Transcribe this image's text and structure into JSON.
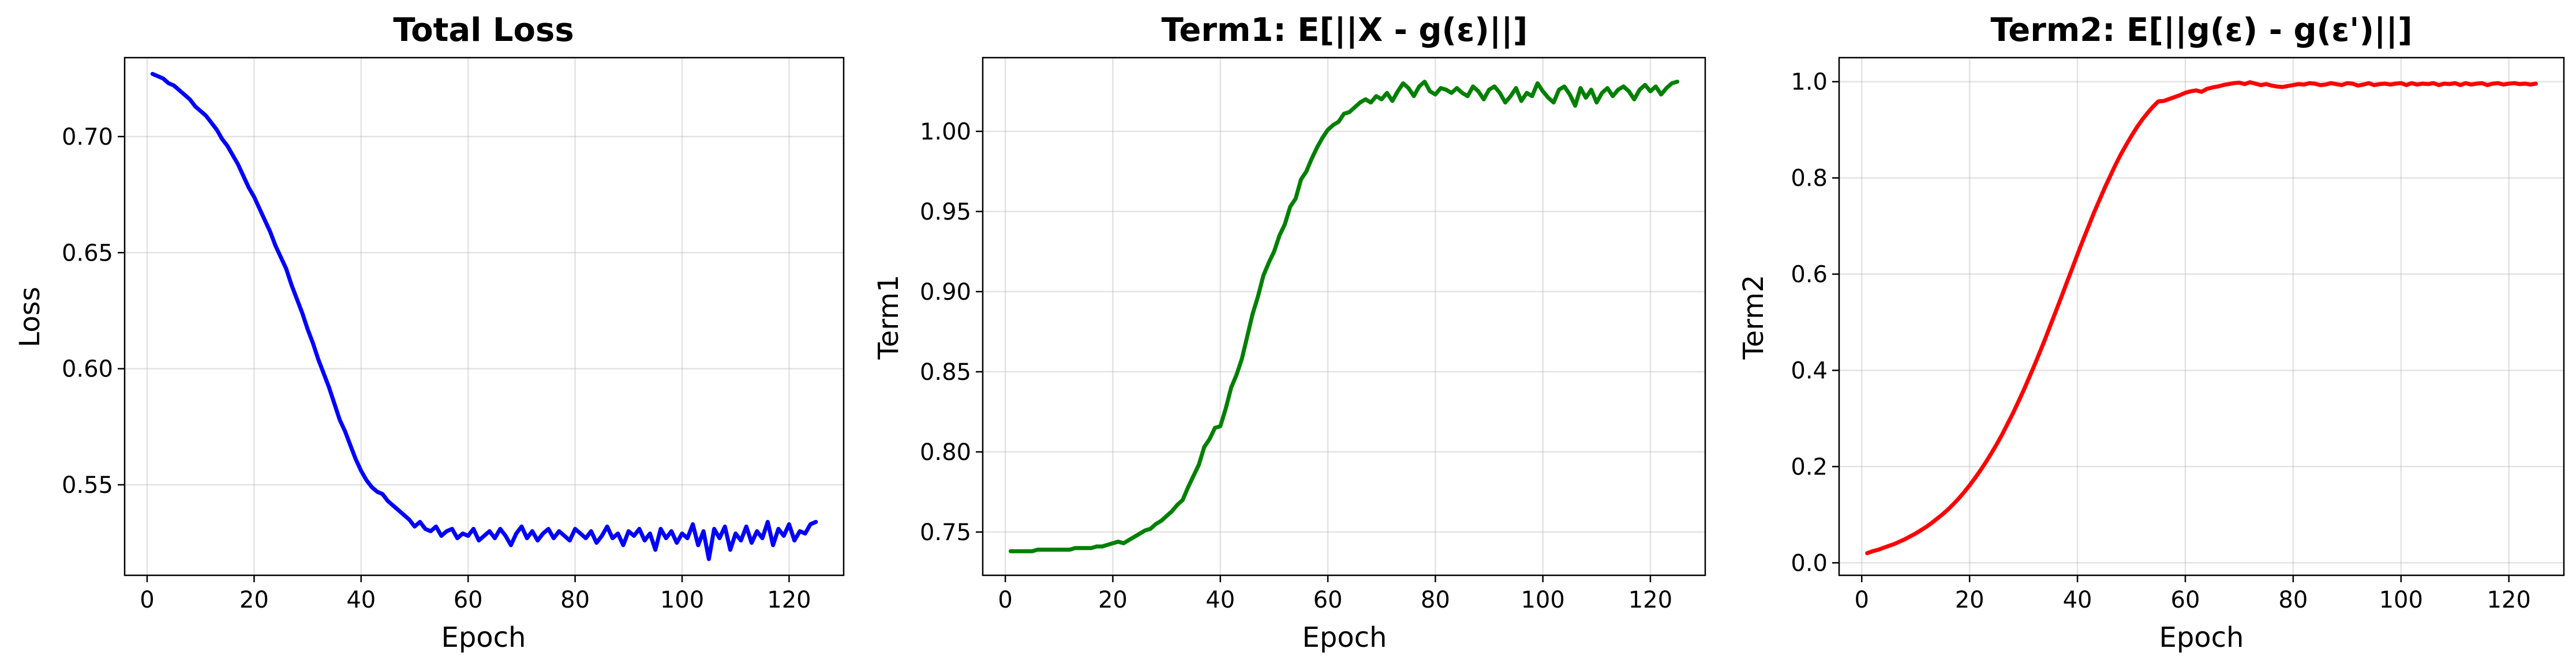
{
  "chart_data": [
    {
      "type": "line",
      "title": "Total Loss",
      "xlabel": "Epoch",
      "ylabel": "Loss",
      "xlim": [
        -4.2,
        130.2
      ],
      "ylim": [
        0.511,
        0.734
      ],
      "xticks": [
        0,
        20,
        40,
        60,
        80,
        100,
        120
      ],
      "xtick_labels": [
        "0",
        "20",
        "40",
        "60",
        "80",
        "100",
        "120"
      ],
      "yticks": [
        0.55,
        0.6,
        0.65,
        0.7
      ],
      "ytick_labels": [
        "0.55",
        "0.60",
        "0.65",
        "0.70"
      ],
      "grid": true,
      "series": [
        {
          "color": "#0000ff",
          "x": [
            1,
            2,
            3,
            4,
            5,
            6,
            7,
            8,
            9,
            10,
            11,
            12,
            13,
            14,
            15,
            16,
            17,
            18,
            19,
            20,
            21,
            22,
            23,
            24,
            25,
            26,
            27,
            28,
            29,
            30,
            31,
            32,
            33,
            34,
            35,
            36,
            37,
            38,
            39,
            40,
            41,
            42,
            43,
            44,
            45,
            46,
            47,
            48,
            49,
            50,
            51,
            52,
            53,
            54,
            55,
            56,
            57,
            58,
            59,
            60,
            61,
            62,
            63,
            64,
            65,
            66,
            67,
            68,
            69,
            70,
            71,
            72,
            73,
            74,
            75,
            76,
            77,
            78,
            79,
            80,
            81,
            82,
            83,
            84,
            85,
            86,
            87,
            88,
            89,
            90,
            91,
            92,
            93,
            94,
            95,
            96,
            97,
            98,
            99,
            100,
            101,
            102,
            103,
            104,
            105,
            106,
            107,
            108,
            109,
            110,
            111,
            112,
            113,
            114,
            115,
            116,
            117,
            118,
            119,
            120,
            121,
            122,
            123,
            124,
            125
          ],
          "y": [
            0.727,
            0.726,
            0.725,
            0.723,
            0.722,
            0.72,
            0.718,
            0.716,
            0.713,
            0.711,
            0.709,
            0.706,
            0.703,
            0.699,
            0.696,
            0.692,
            0.688,
            0.683,
            0.678,
            0.674,
            0.669,
            0.664,
            0.659,
            0.653,
            0.648,
            0.643,
            0.636,
            0.63,
            0.624,
            0.617,
            0.611,
            0.604,
            0.598,
            0.592,
            0.585,
            0.578,
            0.573,
            0.567,
            0.561,
            0.556,
            0.552,
            0.549,
            0.547,
            0.546,
            0.543,
            0.541,
            0.539,
            0.537,
            0.535,
            0.532,
            0.534,
            0.531,
            0.53,
            0.532,
            0.528,
            0.53,
            0.531,
            0.527,
            0.529,
            0.528,
            0.531,
            0.526,
            0.528,
            0.53,
            0.527,
            0.531,
            0.528,
            0.524,
            0.529,
            0.532,
            0.527,
            0.53,
            0.526,
            0.529,
            0.531,
            0.527,
            0.53,
            0.528,
            0.526,
            0.531,
            0.529,
            0.527,
            0.53,
            0.525,
            0.528,
            0.532,
            0.527,
            0.529,
            0.524,
            0.53,
            0.528,
            0.531,
            0.526,
            0.529,
            0.522,
            0.531,
            0.527,
            0.53,
            0.525,
            0.529,
            0.527,
            0.533,
            0.524,
            0.53,
            0.518,
            0.531,
            0.527,
            0.532,
            0.522,
            0.529,
            0.526,
            0.532,
            0.525,
            0.53,
            0.527,
            0.534,
            0.524,
            0.531,
            0.528,
            0.533,
            0.526,
            0.53,
            0.529,
            0.533,
            0.534
          ]
        }
      ]
    },
    {
      "type": "line",
      "title": "Term1: E[||X - g(ε)||]",
      "xlabel": "Epoch",
      "ylabel": "Term1",
      "xlim": [
        -4.2,
        130.2
      ],
      "ylim": [
        0.723,
        1.046
      ],
      "xticks": [
        0,
        20,
        40,
        60,
        80,
        100,
        120
      ],
      "xtick_labels": [
        "0",
        "20",
        "40",
        "60",
        "80",
        "100",
        "120"
      ],
      "yticks": [
        0.75,
        0.8,
        0.85,
        0.9,
        0.95,
        1.0
      ],
      "ytick_labels": [
        "0.75",
        "0.80",
        "0.85",
        "0.90",
        "0.95",
        "1.00"
      ],
      "grid": true,
      "series": [
        {
          "color": "#008000",
          "x": [
            1,
            2,
            3,
            4,
            5,
            6,
            7,
            8,
            9,
            10,
            11,
            12,
            13,
            14,
            15,
            16,
            17,
            18,
            19,
            20,
            21,
            22,
            23,
            24,
            25,
            26,
            27,
            28,
            29,
            30,
            31,
            32,
            33,
            34,
            35,
            36,
            37,
            38,
            39,
            40,
            41,
            42,
            43,
            44,
            45,
            46,
            47,
            48,
            49,
            50,
            51,
            52,
            53,
            54,
            55,
            56,
            57,
            58,
            59,
            60,
            61,
            62,
            63,
            64,
            65,
            66,
            67,
            68,
            69,
            70,
            71,
            72,
            73,
            74,
            75,
            76,
            77,
            78,
            79,
            80,
            81,
            82,
            83,
            84,
            85,
            86,
            87,
            88,
            89,
            90,
            91,
            92,
            93,
            94,
            95,
            96,
            97,
            98,
            99,
            100,
            101,
            102,
            103,
            104,
            105,
            106,
            107,
            108,
            109,
            110,
            111,
            112,
            113,
            114,
            115,
            116,
            117,
            118,
            119,
            120,
            121,
            122,
            123,
            124,
            125
          ],
          "y": [
            0.738,
            0.738,
            0.738,
            0.738,
            0.738,
            0.739,
            0.739,
            0.739,
            0.739,
            0.739,
            0.739,
            0.739,
            0.74,
            0.74,
            0.74,
            0.74,
            0.741,
            0.741,
            0.742,
            0.743,
            0.744,
            0.743,
            0.745,
            0.747,
            0.749,
            0.751,
            0.752,
            0.755,
            0.757,
            0.76,
            0.763,
            0.767,
            0.77,
            0.778,
            0.785,
            0.792,
            0.803,
            0.808,
            0.815,
            0.816,
            0.827,
            0.84,
            0.848,
            0.858,
            0.872,
            0.886,
            0.897,
            0.91,
            0.918,
            0.925,
            0.935,
            0.942,
            0.953,
            0.958,
            0.97,
            0.975,
            0.983,
            0.99,
            0.996,
            1.001,
            1.004,
            1.006,
            1.011,
            1.012,
            1.015,
            1.018,
            1.02,
            1.018,
            1.022,
            1.02,
            1.024,
            1.019,
            1.025,
            1.03,
            1.027,
            1.022,
            1.028,
            1.031,
            1.025,
            1.023,
            1.027,
            1.026,
            1.024,
            1.027,
            1.024,
            1.022,
            1.028,
            1.025,
            1.02,
            1.026,
            1.028,
            1.024,
            1.018,
            1.022,
            1.027,
            1.019,
            1.024,
            1.022,
            1.03,
            1.025,
            1.021,
            1.018,
            1.026,
            1.028,
            1.023,
            1.016,
            1.027,
            1.021,
            1.026,
            1.018,
            1.024,
            1.027,
            1.022,
            1.026,
            1.028,
            1.025,
            1.02,
            1.026,
            1.029,
            1.025,
            1.028,
            1.023,
            1.027,
            1.03,
            1.031
          ]
        }
      ]
    },
    {
      "type": "line",
      "title": "Term2: E[||g(ε) - g(ε')||]",
      "xlabel": "Epoch",
      "ylabel": "Term2",
      "xlim": [
        -4.2,
        130.2
      ],
      "ylim": [
        -0.026,
        1.05
      ],
      "xticks": [
        0,
        20,
        40,
        60,
        80,
        100,
        120
      ],
      "xtick_labels": [
        "0",
        "20",
        "40",
        "60",
        "80",
        "100",
        "120"
      ],
      "yticks": [
        0.0,
        0.2,
        0.4,
        0.6,
        0.8,
        1.0
      ],
      "ytick_labels": [
        "0.0",
        "0.2",
        "0.4",
        "0.6",
        "0.8",
        "1.0"
      ],
      "grid": true,
      "series": [
        {
          "color": "#ff0000",
          "x": [
            1,
            2,
            3,
            4,
            5,
            6,
            7,
            8,
            9,
            10,
            11,
            12,
            13,
            14,
            15,
            16,
            17,
            18,
            19,
            20,
            21,
            22,
            23,
            24,
            25,
            26,
            27,
            28,
            29,
            30,
            31,
            32,
            33,
            34,
            35,
            36,
            37,
            38,
            39,
            40,
            41,
            42,
            43,
            44,
            45,
            46,
            47,
            48,
            49,
            50,
            51,
            52,
            53,
            54,
            55,
            56,
            57,
            58,
            59,
            60,
            61,
            62,
            63,
            64,
            65,
            66,
            67,
            68,
            69,
            70,
            71,
            72,
            73,
            74,
            75,
            76,
            77,
            78,
            79,
            80,
            81,
            82,
            83,
            84,
            85,
            86,
            87,
            88,
            89,
            90,
            91,
            92,
            93,
            94,
            95,
            96,
            97,
            98,
            99,
            100,
            101,
            102,
            103,
            104,
            105,
            106,
            107,
            108,
            109,
            110,
            111,
            112,
            113,
            114,
            115,
            116,
            117,
            118,
            119,
            120,
            121,
            122,
            123,
            124,
            125
          ],
          "y": [
            0.02,
            0.024,
            0.027,
            0.031,
            0.035,
            0.039,
            0.044,
            0.049,
            0.055,
            0.061,
            0.068,
            0.075,
            0.083,
            0.092,
            0.101,
            0.111,
            0.122,
            0.134,
            0.147,
            0.161,
            0.176,
            0.192,
            0.209,
            0.227,
            0.246,
            0.266,
            0.288,
            0.31,
            0.334,
            0.358,
            0.384,
            0.41,
            0.437,
            0.465,
            0.494,
            0.523,
            0.552,
            0.582,
            0.611,
            0.641,
            0.67,
            0.698,
            0.726,
            0.752,
            0.778,
            0.802,
            0.826,
            0.848,
            0.868,
            0.887,
            0.905,
            0.921,
            0.935,
            0.948,
            0.959,
            0.96,
            0.964,
            0.968,
            0.972,
            0.977,
            0.98,
            0.982,
            0.979,
            0.985,
            0.988,
            0.99,
            0.993,
            0.995,
            0.997,
            0.998,
            0.995,
            0.999,
            0.996,
            0.993,
            0.995,
            0.992,
            0.99,
            0.989,
            0.991,
            0.993,
            0.995,
            0.994,
            0.997,
            0.996,
            0.993,
            0.994,
            0.997,
            0.995,
            0.993,
            0.997,
            0.996,
            0.992,
            0.994,
            0.997,
            0.993,
            0.995,
            0.996,
            0.994,
            0.996,
            0.997,
            0.993,
            0.997,
            0.994,
            0.996,
            0.995,
            0.997,
            0.993,
            0.996,
            0.995,
            0.997,
            0.993,
            0.997,
            0.994,
            0.996,
            0.997,
            0.993,
            0.996,
            0.997,
            0.994,
            0.996,
            0.997,
            0.995,
            0.996,
            0.994,
            0.996
          ]
        }
      ]
    }
  ]
}
